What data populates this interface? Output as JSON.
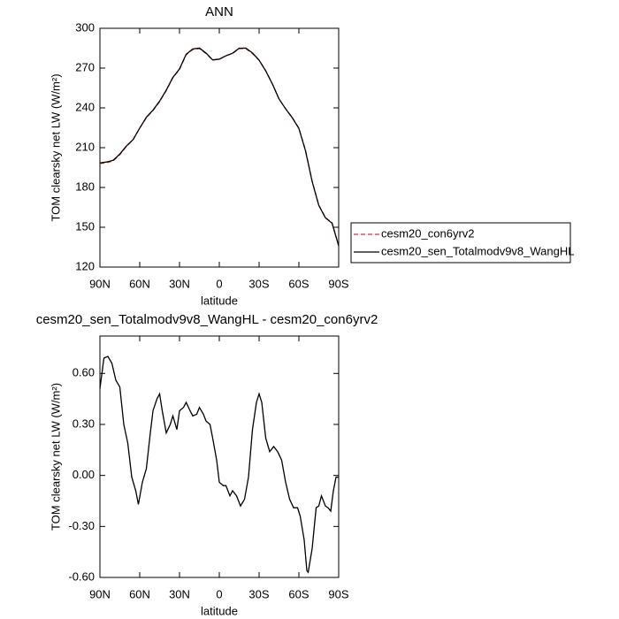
{
  "chart_data": [
    {
      "type": "line",
      "title": "ANN",
      "xlabel": "latitude",
      "ylabel": "TOM clearsky net LW (W/m²)",
      "x": [
        90,
        85,
        80,
        75,
        70,
        65,
        60,
        55,
        50,
        45,
        40,
        35,
        30,
        25,
        20,
        15,
        10,
        5,
        0,
        -5,
        -10,
        -15,
        -20,
        -25,
        -30,
        -35,
        -40,
        -45,
        -50,
        -55,
        -60,
        -65,
        -70,
        -75,
        -80,
        -85,
        -90
      ],
      "series": [
        {
          "name": "cesm20_con6yrv2",
          "color": "#e0302a",
          "line_style": "dashed",
          "values": [
            198,
            198.7,
            200,
            204.7,
            211,
            216,
            224.7,
            232.7,
            238,
            244.7,
            253,
            262.7,
            269,
            280,
            284,
            284.7,
            281,
            276,
            276.7,
            279.3,
            281,
            284.7,
            284.7,
            281,
            276,
            268,
            258,
            246.7,
            239.3,
            232.7,
            224.7,
            208,
            184.7,
            166.7,
            157.3,
            153.3,
            136
          ]
        },
        {
          "name": "cesm20_sen_Totalmodv9v8_WangHL",
          "color": "#000000",
          "line_style": "solid",
          "values": [
            198.5,
            199.2,
            200.5,
            205.2,
            211.3,
            216.1,
            224.8,
            232.9,
            238.3,
            245.1,
            253.4,
            263,
            269.4,
            280.4,
            284.4,
            285.1,
            281.3,
            276.2,
            276.7,
            279.3,
            281.2,
            285,
            285.1,
            281.4,
            276,
            267.9,
            258.1,
            246.8,
            239.3,
            232.6,
            224.5,
            207.6,
            184.5,
            166.5,
            157.1,
            153.1,
            136
          ]
        }
      ],
      "xlim": [
        90,
        -90
      ],
      "xticks": [
        {
          "value": 90,
          "label": "90N"
        },
        {
          "value": 60,
          "label": "60N"
        },
        {
          "value": 30,
          "label": "30N"
        },
        0,
        {
          "value": -30,
          "label": "30S"
        },
        {
          "value": -60,
          "label": "60S"
        },
        {
          "value": -90,
          "label": "90S"
        }
      ],
      "ylim": [
        120,
        300
      ],
      "yticks": [
        120,
        150,
        180,
        210,
        240,
        270,
        300
      ],
      "legend": "right"
    },
    {
      "type": "line",
      "title": "cesm20_sen_Totalmodv9v8_WangHL - cesm20_con6yrv2",
      "xlabel": "latitude",
      "ylabel": "TOM clearsky net LW (W/m²)",
      "x": [
        90,
        87,
        84,
        81,
        78,
        75,
        72,
        69,
        66,
        63,
        61,
        58,
        55,
        52,
        50,
        47,
        45,
        43,
        40,
        37,
        35,
        32,
        30,
        27,
        25,
        22,
        20,
        17,
        15,
        12,
        10,
        7,
        5,
        2,
        0,
        -3,
        -5,
        -8,
        -10,
        -13,
        -16,
        -19,
        -22,
        -25,
        -28,
        -30,
        -32,
        -35,
        -38,
        -41,
        -44,
        -47,
        -50,
        -53,
        -56,
        -59,
        -61,
        -64,
        -66,
        -67,
        -70,
        -73,
        -75,
        -77,
        -80,
        -82,
        -84,
        -86,
        -88,
        -90
      ],
      "series": [
        {
          "color": "#000000",
          "line_style": "solid",
          "values": [
            0.51,
            0.69,
            0.7,
            0.66,
            0.56,
            0.52,
            0.3,
            0.19,
            -0.01,
            -0.09,
            -0.17,
            -0.04,
            0.04,
            0.25,
            0.38,
            0.45,
            0.48,
            0.38,
            0.25,
            0.3,
            0.35,
            0.27,
            0.38,
            0.4,
            0.43,
            0.38,
            0.35,
            0.36,
            0.4,
            0.36,
            0.32,
            0.3,
            0.22,
            0.09,
            -0.04,
            -0.06,
            -0.06,
            -0.12,
            -0.09,
            -0.12,
            -0.18,
            -0.14,
            -0.01,
            0.27,
            0.43,
            0.48,
            0.43,
            0.22,
            0.14,
            0.17,
            0.14,
            0.09,
            -0.04,
            -0.14,
            -0.19,
            -0.19,
            -0.24,
            -0.38,
            -0.56,
            -0.57,
            -0.43,
            -0.19,
            -0.18,
            -0.12,
            -0.18,
            -0.19,
            -0.21,
            -0.09,
            -0.01,
            -0.01
          ]
        }
      ],
      "xlim": [
        90,
        -90
      ],
      "xticks": [
        {
          "value": 90,
          "label": "90N"
        },
        {
          "value": 60,
          "label": "60N"
        },
        {
          "value": 30,
          "label": "30N"
        },
        0,
        {
          "value": -30,
          "label": "30S"
        },
        {
          "value": -60,
          "label": "60S"
        },
        {
          "value": -90,
          "label": "90S"
        }
      ],
      "ylim": [
        -0.6,
        0.82
      ],
      "yticks": [
        {
          "value": -0.6,
          "label": "-0.60"
        },
        {
          "value": -0.3,
          "label": "-0.30"
        },
        {
          "value": 0,
          "label": "0.00"
        },
        {
          "value": 0.3,
          "label": "0.30"
        },
        {
          "value": 0.6,
          "label": "0.60"
        }
      ]
    }
  ]
}
